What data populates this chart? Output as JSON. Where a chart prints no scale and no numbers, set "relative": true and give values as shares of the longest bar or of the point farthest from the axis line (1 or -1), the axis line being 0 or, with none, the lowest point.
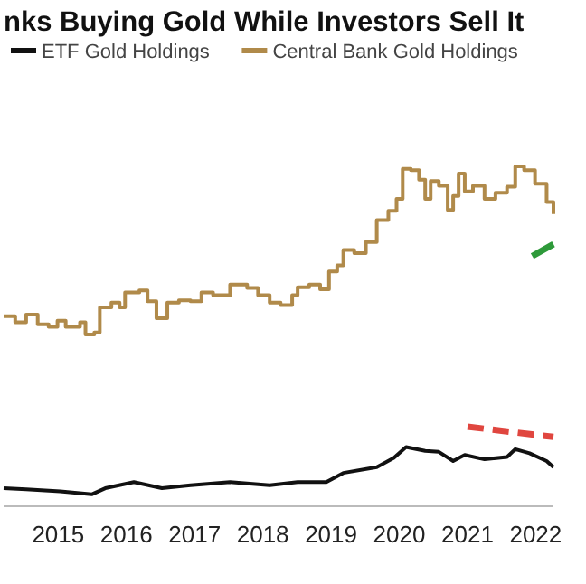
{
  "chart_data": {
    "type": "line",
    "title": "nks Buying Gold While Investors Sell It",
    "relative": true,
    "legend": "top",
    "xlim": [
      2014.7,
      2022.76
    ],
    "xticks": [
      {
        "value": 2015.5,
        "label": "2015"
      },
      {
        "value": 2016.5,
        "label": "2016"
      },
      {
        "value": 2017.5,
        "label": "2017"
      },
      {
        "value": 2018.5,
        "label": "2018"
      },
      {
        "value": 2019.5,
        "label": "2019"
      },
      {
        "value": 2020.5,
        "label": "2020"
      },
      {
        "value": 2021.5,
        "label": "2021"
      },
      {
        "value": 2022.5,
        "label": "2022"
      }
    ],
    "series": [
      {
        "name": "ETF Gold Holdings",
        "color": "#111111",
        "x": [
          2014.7,
          2015.03,
          2015.53,
          2015.99,
          2016.19,
          2016.61,
          2017.02,
          2017.44,
          2018.02,
          2018.6,
          2019.01,
          2019.43,
          2019.68,
          2020.17,
          2020.42,
          2020.6,
          2020.88,
          2021.08,
          2021.29,
          2021.46,
          2021.75,
          2022.08,
          2022.2,
          2022.41,
          2022.66,
          2022.76
        ],
        "values": [
          0.053,
          0.05,
          0.044,
          0.035,
          0.053,
          0.071,
          0.053,
          0.062,
          0.071,
          0.062,
          0.071,
          0.071,
          0.098,
          0.115,
          0.142,
          0.174,
          0.163,
          0.16,
          0.133,
          0.151,
          0.138,
          0.145,
          0.168,
          0.156,
          0.133,
          0.115
        ]
      },
      {
        "name": "Central Bank Gold Holdings",
        "color": "#b08a4a",
        "type": "step",
        "x": [
          2014.7,
          2014.87,
          2015.03,
          2015.2,
          2015.36,
          2015.49,
          2015.61,
          2015.82,
          2015.9,
          2016.03,
          2016.11,
          2016.28,
          2016.4,
          2016.48,
          2016.69,
          2016.81,
          2016.94,
          2017.1,
          2017.27,
          2017.44,
          2017.6,
          2017.77,
          2018.02,
          2018.27,
          2018.43,
          2018.6,
          2018.76,
          2018.93,
          2019.01,
          2019.18,
          2019.34,
          2019.47,
          2019.59,
          2019.68,
          2019.84,
          2020.01,
          2020.17,
          2020.34,
          2020.46,
          2020.55,
          2020.67,
          2020.79,
          2020.88,
          2020.96,
          2021.08,
          2021.21,
          2021.29,
          2021.37,
          2021.46,
          2021.58,
          2021.75,
          2021.91,
          2022.08,
          2022.2,
          2022.33,
          2022.49,
          2022.66,
          2022.76
        ],
        "values": [
          0.559,
          0.541,
          0.564,
          0.535,
          0.528,
          0.546,
          0.528,
          0.541,
          0.505,
          0.511,
          0.585,
          0.599,
          0.585,
          0.629,
          0.635,
          0.603,
          0.553,
          0.599,
          0.606,
          0.603,
          0.629,
          0.621,
          0.652,
          0.642,
          0.621,
          0.599,
          0.592,
          0.621,
          0.644,
          0.652,
          0.638,
          0.691,
          0.709,
          0.754,
          0.745,
          0.777,
          0.842,
          0.869,
          0.904,
          0.993,
          0.989,
          0.961,
          0.904,
          0.957,
          0.943,
          0.872,
          0.913,
          0.979,
          0.926,
          0.943,
          0.904,
          0.922,
          0.94,
          1,
          0.989,
          0.949,
          0.895,
          0.86
        ]
      },
      {
        "color": "#2e9a3a",
        "x": [
          2022.45,
          2022.76
        ],
        "values": [
          0.736,
          0.771
        ]
      },
      {
        "color": "#e0463f",
        "line_style": "dashed",
        "x": [
          2021.5,
          2022.76
        ],
        "values": [
          0.234,
          0.204
        ]
      }
    ]
  }
}
